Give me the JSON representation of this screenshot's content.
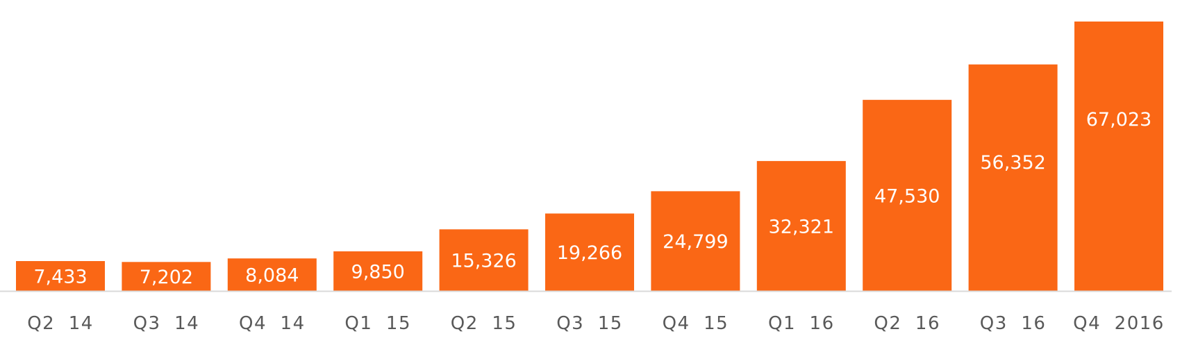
{
  "chart_data": {
    "type": "bar",
    "categories": [
      "Q2 14",
      "Q3 14",
      "Q4 14",
      "Q1 15",
      "Q2 15",
      "Q3 15",
      "Q4 15",
      "Q1 16",
      "Q2 16",
      "Q3 16",
      "Q4 2016"
    ],
    "values": [
      7433,
      7202,
      8084,
      9850,
      15326,
      19266,
      24799,
      32321,
      47530,
      56352,
      67023
    ],
    "value_labels": [
      "7,433",
      "7,202",
      "8,084",
      "9,850",
      "15,326",
      "19,266",
      "24,799",
      "32,321",
      "47,530",
      "56,352",
      "67,023"
    ],
    "ylim": [
      0,
      67023
    ],
    "grid": false,
    "legend": "none",
    "colors": {
      "bar": "#FA6715",
      "baseline": "#D9D9D9",
      "value_text": "#FFFFFF",
      "tick_text": "#595959"
    }
  }
}
